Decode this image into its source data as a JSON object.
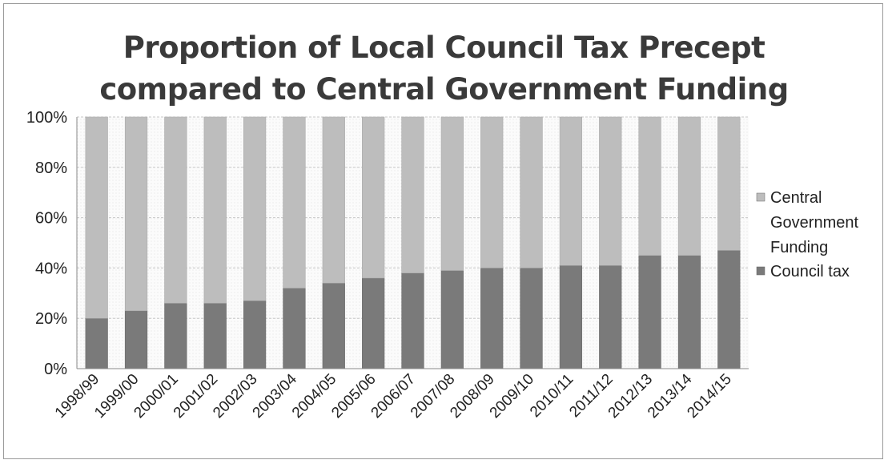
{
  "chart_data": {
    "type": "bar",
    "stacked": true,
    "percent": true,
    "title": [
      "Proportion of Local Council Tax Precept",
      "compared to Central Government Funding"
    ],
    "categories": [
      "1998/99",
      "1999/00",
      "2000/01",
      "2001/02",
      "2002/03",
      "2003/04",
      "2004/05",
      "2005/06",
      "2006/07",
      "2007/08",
      "2008/09",
      "2009/10",
      "2010/11",
      "2011/12",
      "2012/13",
      "2013/14",
      "2014/15"
    ],
    "series": [
      {
        "name": "Council tax",
        "color": "#7a7a7a",
        "values": [
          20,
          23,
          26,
          26,
          27,
          32,
          34,
          36,
          38,
          39,
          40,
          40,
          41,
          41,
          45,
          45,
          47
        ]
      },
      {
        "name": "Central Government Funding",
        "color": "#bdbdbd",
        "values": [
          80,
          77,
          74,
          74,
          73,
          68,
          66,
          64,
          62,
          61,
          60,
          60,
          59,
          59,
          55,
          55,
          53
        ]
      }
    ],
    "yticks": [
      "0%",
      "20%",
      "40%",
      "60%",
      "80%",
      "100%"
    ],
    "ylim": [
      0,
      100
    ],
    "grid": true,
    "legend_position": "right"
  }
}
